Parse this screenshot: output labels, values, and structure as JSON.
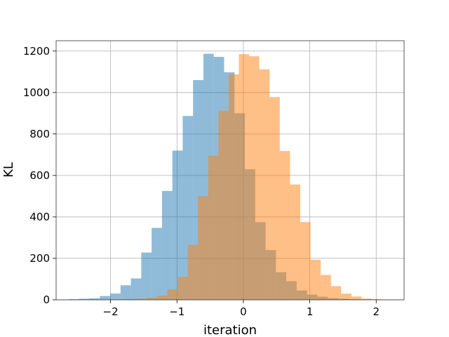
{
  "chart_data": {
    "type": "bar",
    "xlabel": "iteration",
    "ylabel": "KL",
    "xlim": [
      -2.82,
      2.42
    ],
    "ylim": [
      0,
      1250
    ],
    "x_ticks": [
      -2,
      -1,
      0,
      1,
      2
    ],
    "x_tick_labels": [
      "−2",
      "−1",
      "0",
      "1",
      "2"
    ],
    "y_ticks": [
      0,
      200,
      400,
      600,
      800,
      1000,
      1200
    ],
    "y_tick_labels": [
      "0",
      "200",
      "400",
      "600",
      "800",
      "1000",
      "1200"
    ],
    "grid": true,
    "series": [
      {
        "color": "#1f77b4",
        "opacity": 0.5,
        "bin_edges": [
          -2.63,
          -2.474,
          -2.318,
          -2.162,
          -2.006,
          -1.85,
          -1.694,
          -1.538,
          -1.382,
          -1.226,
          -1.07,
          -0.914,
          -0.758,
          -0.602,
          -0.446,
          -0.29,
          -0.134,
          0.022,
          0.178,
          0.334,
          0.49,
          0.646,
          0.802,
          0.958,
          1.114,
          1.27,
          1.426,
          1.582,
          1.738,
          1.894,
          2.05
        ],
        "counts": [
          3,
          5,
          7,
          18,
          30,
          70,
          103,
          228,
          347,
          525,
          720,
          887,
          1060,
          1187,
          1172,
          1098,
          900,
          630,
          375,
          240,
          133,
          90,
          45,
          25,
          15,
          8,
          5,
          3,
          2,
          1
        ]
      },
      {
        "color": "#ff7f0e",
        "opacity": 0.5,
        "bin_edges": [
          -2.07,
          -1.916,
          -1.762,
          -1.608,
          -1.454,
          -1.3,
          -1.146,
          -0.992,
          -0.838,
          -0.684,
          -0.53,
          -0.376,
          -0.222,
          -0.068,
          0.086,
          0.24,
          0.394,
          0.548,
          0.702,
          0.856,
          1.01,
          1.164,
          1.318,
          1.472,
          1.626,
          1.78,
          1.934,
          2.088,
          2.242
        ],
        "counts": [
          1,
          2,
          3,
          5,
          10,
          20,
          50,
          110,
          265,
          500,
          695,
          912,
          1088,
          1185,
          1175,
          1112,
          978,
          718,
          556,
          375,
          193,
          120,
          66,
          30,
          16,
          6,
          3,
          1
        ]
      }
    ]
  }
}
